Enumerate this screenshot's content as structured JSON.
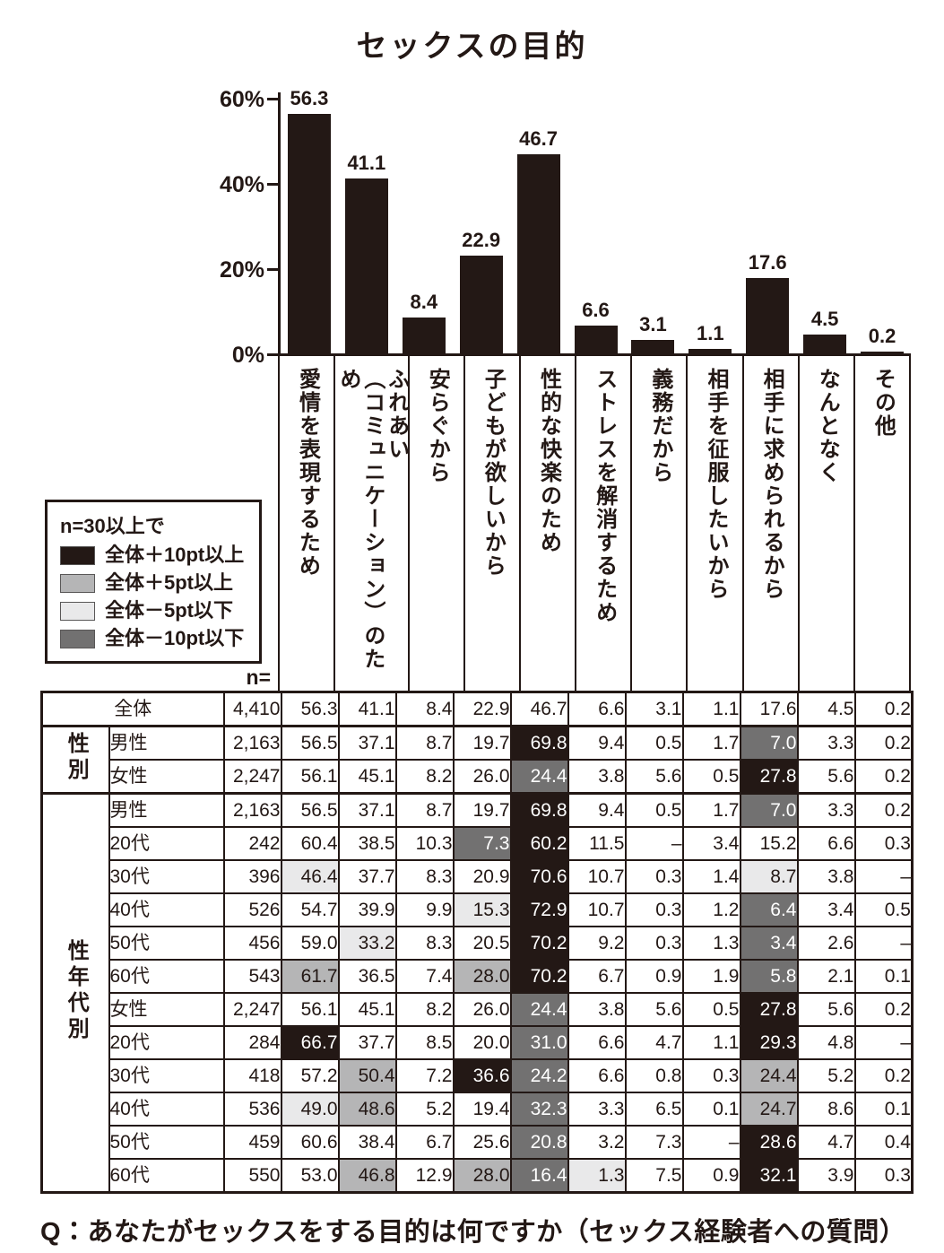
{
  "page": {
    "title": "セックスの目的",
    "question": "Q：あなたがセックスをする目的は何ですか（セックス経験者への質問）"
  },
  "chart_data": {
    "type": "bar",
    "title": "セックスの目的",
    "unit": "%",
    "categories": [
      "愛情を表現するため",
      "ふれあい（コミュニケーション）のため",
      "安らぐから",
      "子どもが欲しいから",
      "性的な快楽のため",
      "ストレスを解消するため",
      "義務だから",
      "相手を征服したいから",
      "相手に求められるから",
      "なんとなく",
      "その他"
    ],
    "categories_display": [
      "愛情を表現するため",
      "ふれあい\n（コミュニケーション）のため",
      "安らぐから",
      "子どもが欲しいから",
      "性的な快楽のため",
      "ストレスを解消するため",
      "義務だから",
      "相手を征服したいから",
      "相手に求められるから",
      "なんとなく",
      "その他"
    ],
    "values": [
      56.3,
      41.1,
      8.4,
      22.9,
      46.7,
      6.6,
      3.1,
      1.1,
      17.6,
      4.5,
      0.2
    ],
    "value_labels": [
      "56.3",
      "41.1",
      "8.4",
      "22.9",
      "46.7",
      "6.6",
      "3.1",
      "1.1",
      "17.6",
      "4.5",
      "0.2"
    ],
    "ylim": [
      0,
      60
    ],
    "yticks": [
      {
        "value": 60,
        "label": "60%"
      },
      {
        "value": 40,
        "label": "40%"
      },
      {
        "value": 20,
        "label": "20%"
      },
      {
        "value": 0,
        "label": "0%"
      }
    ],
    "grid": false,
    "bar_color": "#231815",
    "legend_position": "middle-left"
  },
  "legend": {
    "title": "n=30以上で",
    "items": [
      {
        "code": "hi",
        "label": "全体＋10pt以上",
        "color": "#231815",
        "text_color": "#ffffff"
      },
      {
        "code": "p5",
        "label": "全体＋5pt以上",
        "color": "#b5b5b6",
        "text_color": "#231815"
      },
      {
        "code": "m5",
        "label": "全体－5pt以下",
        "color": "#e9e9ea",
        "text_color": "#231815"
      },
      {
        "code": "m10",
        "label": "全体－10pt以下",
        "color": "#727171",
        "text_color": "#ffffff"
      }
    ]
  },
  "table": {
    "n_label": "n=",
    "groups": [
      {
        "name": "",
        "rows": [
          {
            "label": "全体",
            "merged": true,
            "indent": false,
            "n": "4,410",
            "cells": [
              [
                "56.3",
                ""
              ],
              [
                "41.1",
                ""
              ],
              [
                "8.4",
                ""
              ],
              [
                "22.9",
                ""
              ],
              [
                "46.7",
                ""
              ],
              [
                "6.6",
                ""
              ],
              [
                "3.1",
                ""
              ],
              [
                "1.1",
                ""
              ],
              [
                "17.6",
                ""
              ],
              [
                "4.5",
                ""
              ],
              [
                "0.2",
                ""
              ]
            ]
          }
        ]
      },
      {
        "name": "性別",
        "rows": [
          {
            "label": "男性",
            "indent": false,
            "n": "2,163",
            "cells": [
              [
                "56.5",
                ""
              ],
              [
                "37.1",
                ""
              ],
              [
                "8.7",
                ""
              ],
              [
                "19.7",
                ""
              ],
              [
                "69.8",
                "hi"
              ],
              [
                "9.4",
                ""
              ],
              [
                "0.5",
                ""
              ],
              [
                "1.7",
                ""
              ],
              [
                "7.0",
                "m10"
              ],
              [
                "3.3",
                ""
              ],
              [
                "0.2",
                ""
              ]
            ]
          },
          {
            "label": "女性",
            "indent": false,
            "n": "2,247",
            "cells": [
              [
                "56.1",
                ""
              ],
              [
                "45.1",
                ""
              ],
              [
                "8.2",
                ""
              ],
              [
                "26.0",
                ""
              ],
              [
                "24.4",
                "m10"
              ],
              [
                "3.8",
                ""
              ],
              [
                "5.6",
                ""
              ],
              [
                "0.5",
                ""
              ],
              [
                "27.8",
                "hi"
              ],
              [
                "5.6",
                ""
              ],
              [
                "0.2",
                ""
              ]
            ]
          }
        ]
      },
      {
        "name": "性年代別",
        "rows": [
          {
            "label": "男性",
            "indent": false,
            "n": "2,163",
            "cells": [
              [
                "56.5",
                ""
              ],
              [
                "37.1",
                ""
              ],
              [
                "8.7",
                ""
              ],
              [
                "19.7",
                ""
              ],
              [
                "69.8",
                "hi"
              ],
              [
                "9.4",
                ""
              ],
              [
                "0.5",
                ""
              ],
              [
                "1.7",
                ""
              ],
              [
                "7.0",
                "m10"
              ],
              [
                "3.3",
                ""
              ],
              [
                "0.2",
                ""
              ]
            ]
          },
          {
            "label": "20代",
            "indent": true,
            "n": "242",
            "cells": [
              [
                "60.4",
                ""
              ],
              [
                "38.5",
                ""
              ],
              [
                "10.3",
                ""
              ],
              [
                "7.3",
                "m10"
              ],
              [
                "60.2",
                "hi"
              ],
              [
                "11.5",
                ""
              ],
              [
                "–",
                ""
              ],
              [
                "3.4",
                ""
              ],
              [
                "15.2",
                ""
              ],
              [
                "6.6",
                ""
              ],
              [
                "0.3",
                ""
              ]
            ]
          },
          {
            "label": "30代",
            "indent": true,
            "n": "396",
            "cells": [
              [
                "46.4",
                "m5"
              ],
              [
                "37.7",
                ""
              ],
              [
                "8.3",
                ""
              ],
              [
                "20.9",
                ""
              ],
              [
                "70.6",
                "hi"
              ],
              [
                "10.7",
                ""
              ],
              [
                "0.3",
                ""
              ],
              [
                "1.4",
                ""
              ],
              [
                "8.7",
                "m5"
              ],
              [
                "3.8",
                ""
              ],
              [
                "–",
                ""
              ]
            ]
          },
          {
            "label": "40代",
            "indent": true,
            "n": "526",
            "cells": [
              [
                "54.7",
                ""
              ],
              [
                "39.9",
                ""
              ],
              [
                "9.9",
                ""
              ],
              [
                "15.3",
                "m5"
              ],
              [
                "72.9",
                "hi"
              ],
              [
                "10.7",
                ""
              ],
              [
                "0.3",
                ""
              ],
              [
                "1.2",
                ""
              ],
              [
                "6.4",
                "m10"
              ],
              [
                "3.4",
                ""
              ],
              [
                "0.5",
                ""
              ]
            ]
          },
          {
            "label": "50代",
            "indent": true,
            "n": "456",
            "cells": [
              [
                "59.0",
                ""
              ],
              [
                "33.2",
                "m5"
              ],
              [
                "8.3",
                ""
              ],
              [
                "20.5",
                ""
              ],
              [
                "70.2",
                "hi"
              ],
              [
                "9.2",
                ""
              ],
              [
                "0.3",
                ""
              ],
              [
                "1.3",
                ""
              ],
              [
                "3.4",
                "m10"
              ],
              [
                "2.6",
                ""
              ],
              [
                "–",
                ""
              ]
            ]
          },
          {
            "label": "60代",
            "indent": true,
            "n": "543",
            "cells": [
              [
                "61.7",
                "p5"
              ],
              [
                "36.5",
                ""
              ],
              [
                "7.4",
                ""
              ],
              [
                "28.0",
                "p5"
              ],
              [
                "70.2",
                "hi"
              ],
              [
                "6.7",
                ""
              ],
              [
                "0.9",
                ""
              ],
              [
                "1.9",
                ""
              ],
              [
                "5.8",
                "m10"
              ],
              [
                "2.1",
                ""
              ],
              [
                "0.1",
                ""
              ]
            ]
          },
          {
            "label": "女性",
            "indent": false,
            "n": "2,247",
            "cells": [
              [
                "56.1",
                ""
              ],
              [
                "45.1",
                ""
              ],
              [
                "8.2",
                ""
              ],
              [
                "26.0",
                ""
              ],
              [
                "24.4",
                "m10"
              ],
              [
                "3.8",
                ""
              ],
              [
                "5.6",
                ""
              ],
              [
                "0.5",
                ""
              ],
              [
                "27.8",
                "hi"
              ],
              [
                "5.6",
                ""
              ],
              [
                "0.2",
                ""
              ]
            ]
          },
          {
            "label": "20代",
            "indent": true,
            "n": "284",
            "cells": [
              [
                "66.7",
                "hi"
              ],
              [
                "37.7",
                ""
              ],
              [
                "8.5",
                ""
              ],
              [
                "20.0",
                ""
              ],
              [
                "31.0",
                "m10"
              ],
              [
                "6.6",
                ""
              ],
              [
                "4.7",
                ""
              ],
              [
                "1.1",
                ""
              ],
              [
                "29.3",
                "hi"
              ],
              [
                "4.8",
                ""
              ],
              [
                "–",
                ""
              ]
            ]
          },
          {
            "label": "30代",
            "indent": true,
            "n": "418",
            "cells": [
              [
                "57.2",
                ""
              ],
              [
                "50.4",
                "p5"
              ],
              [
                "7.2",
                ""
              ],
              [
                "36.6",
                "hi"
              ],
              [
                "24.2",
                "m10"
              ],
              [
                "6.6",
                ""
              ],
              [
                "0.8",
                ""
              ],
              [
                "0.3",
                ""
              ],
              [
                "24.4",
                "p5"
              ],
              [
                "5.2",
                ""
              ],
              [
                "0.2",
                ""
              ]
            ]
          },
          {
            "label": "40代",
            "indent": true,
            "n": "536",
            "cells": [
              [
                "49.0",
                "m5"
              ],
              [
                "48.6",
                "p5"
              ],
              [
                "5.2",
                ""
              ],
              [
                "19.4",
                ""
              ],
              [
                "32.3",
                "m10"
              ],
              [
                "3.3",
                ""
              ],
              [
                "6.5",
                ""
              ],
              [
                "0.1",
                ""
              ],
              [
                "24.7",
                "p5"
              ],
              [
                "8.6",
                ""
              ],
              [
                "0.1",
                ""
              ]
            ]
          },
          {
            "label": "50代",
            "indent": true,
            "n": "459",
            "cells": [
              [
                "60.6",
                ""
              ],
              [
                "38.4",
                ""
              ],
              [
                "6.7",
                ""
              ],
              [
                "25.6",
                ""
              ],
              [
                "20.8",
                "m10"
              ],
              [
                "3.2",
                ""
              ],
              [
                "7.3",
                ""
              ],
              [
                "–",
                ""
              ],
              [
                "28.6",
                "hi"
              ],
              [
                "4.7",
                ""
              ],
              [
                "0.4",
                ""
              ]
            ]
          },
          {
            "label": "60代",
            "indent": true,
            "n": "550",
            "cells": [
              [
                "53.0",
                ""
              ],
              [
                "46.8",
                "p5"
              ],
              [
                "12.9",
                ""
              ],
              [
                "28.0",
                "p5"
              ],
              [
                "16.4",
                "m10"
              ],
              [
                "1.3",
                "m5"
              ],
              [
                "7.5",
                ""
              ],
              [
                "0.9",
                ""
              ],
              [
                "32.1",
                "hi"
              ],
              [
                "3.9",
                ""
              ],
              [
                "0.3",
                ""
              ]
            ]
          }
        ]
      }
    ]
  }
}
